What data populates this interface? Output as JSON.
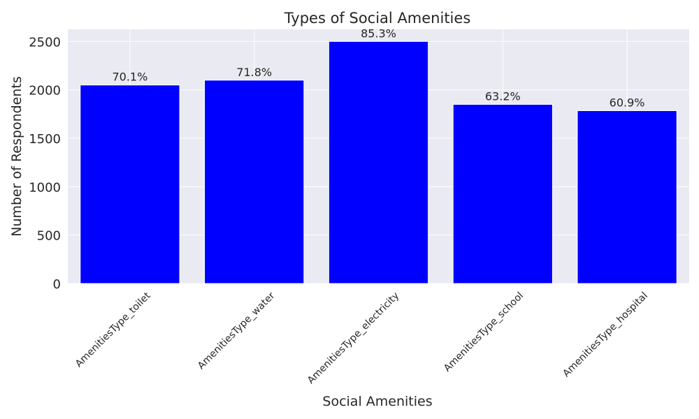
{
  "chart_data": {
    "type": "bar",
    "title": "Types of Social Amenities",
    "xlabel": "Social Amenities",
    "ylabel": "Number of Respondents",
    "categories": [
      "AmenitiesType_toilet",
      "AmenitiesType_water",
      "AmenitiesType_electricity",
      "AmenitiesType_school",
      "AmenitiesType_hospital"
    ],
    "values": [
      2050,
      2100,
      2500,
      1850,
      1785
    ],
    "data_labels": [
      "70.1%",
      "71.8%",
      "85.3%",
      "63.2%",
      "60.9%"
    ],
    "yticks": [
      0,
      500,
      1000,
      1500,
      2000,
      2500
    ],
    "ylim": [
      0,
      2625
    ],
    "grid": true,
    "colors": {
      "bar": "#0000ff",
      "plot_background": "#eaeaf2",
      "grid": "#ffffff",
      "text": "#262626"
    }
  }
}
